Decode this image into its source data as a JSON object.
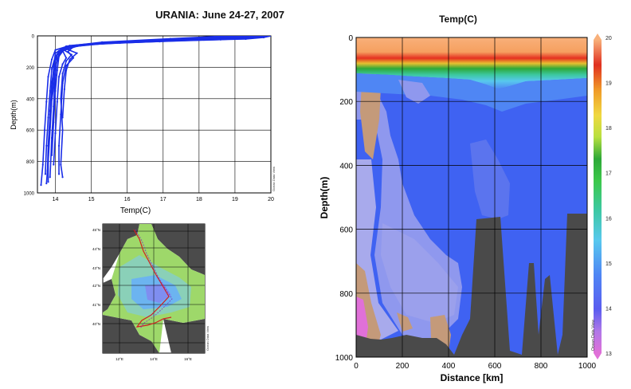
{
  "page": {
    "title": "URANIA: June 24-27, 2007"
  },
  "chart_data": [
    {
      "type": "line",
      "xlabel": "Temp(C)",
      "ylabel": "Depth(m)",
      "xlim": [
        13.5,
        20
      ],
      "ylim": [
        1000,
        0
      ],
      "xticks": [
        14,
        15,
        16,
        17,
        18,
        19,
        20
      ],
      "yticks": [
        0,
        200,
        400,
        600,
        800,
        1000
      ],
      "grid": true,
      "side_label": "Ocean Data View",
      "series": [
        {
          "points": [
            [
              20,
              0
            ],
            [
              19.8,
              10
            ],
            [
              19.3,
              20
            ],
            [
              17.5,
              30
            ],
            [
              15.8,
              45
            ],
            [
              14.6,
              60
            ],
            [
              14.2,
              80
            ],
            [
              14.0,
              110
            ],
            [
              13.95,
              200
            ],
            [
              13.9,
              400
            ],
            [
              13.85,
              600
            ],
            [
              13.8,
              800
            ],
            [
              13.75,
              940
            ]
          ]
        },
        {
          "points": [
            [
              19.9,
              0
            ],
            [
              19.5,
              12
            ],
            [
              18.6,
              24
            ],
            [
              16.9,
              36
            ],
            [
              15.2,
              50
            ],
            [
              14.4,
              70
            ],
            [
              14.1,
              100
            ],
            [
              14.0,
              150
            ],
            [
              13.9,
              300
            ],
            [
              13.85,
              500
            ],
            [
              13.8,
              700
            ],
            [
              13.78,
              860
            ]
          ]
        },
        {
          "points": [
            [
              19.7,
              0
            ],
            [
              19.2,
              10
            ],
            [
              18.2,
              22
            ],
            [
              16.3,
              38
            ],
            [
              14.9,
              55
            ],
            [
              14.3,
              75
            ],
            [
              14.05,
              120
            ],
            [
              14.0,
              250
            ],
            [
              13.95,
              450
            ],
            [
              13.9,
              650
            ],
            [
              13.85,
              900
            ]
          ]
        },
        {
          "points": [
            [
              19.6,
              0
            ],
            [
              19.0,
              14
            ],
            [
              17.6,
              28
            ],
            [
              15.7,
              44
            ],
            [
              14.7,
              60
            ],
            [
              14.25,
              85
            ],
            [
              14.1,
              130
            ],
            [
              14.05,
              220
            ],
            [
              14.0,
              350
            ],
            [
              13.95,
              550
            ],
            [
              13.9,
              760
            ]
          ]
        },
        {
          "points": [
            [
              19.5,
              0
            ],
            [
              18.8,
              12
            ],
            [
              17.0,
              30
            ],
            [
              15.4,
              48
            ],
            [
              14.6,
              66
            ],
            [
              14.2,
              95
            ],
            [
              14.3,
              140
            ],
            [
              14.2,
              180
            ],
            [
              14.1,
              260
            ],
            [
              14.05,
              420
            ],
            [
              14.0,
              620
            ],
            [
              13.95,
              820
            ]
          ]
        },
        {
          "points": [
            [
              19.4,
              0
            ],
            [
              18.5,
              14
            ],
            [
              16.7,
              32
            ],
            [
              15.0,
              52
            ],
            [
              14.5,
              70
            ],
            [
              14.35,
              100
            ],
            [
              14.5,
              140
            ],
            [
              14.3,
              190
            ],
            [
              14.2,
              300
            ],
            [
              14.15,
              500
            ],
            [
              14.1,
              700
            ],
            [
              14.1,
              880
            ]
          ]
        },
        {
          "points": [
            [
              19.3,
              0
            ],
            [
              18.2,
              16
            ],
            [
              16.2,
              34
            ],
            [
              14.8,
              56
            ],
            [
              14.3,
              80
            ],
            [
              14.1,
              120
            ],
            [
              14.0,
              200
            ],
            [
              13.95,
              330
            ],
            [
              13.85,
              480
            ]
          ]
        },
        {
          "points": [
            [
              19.2,
              0
            ],
            [
              18.0,
              18
            ],
            [
              15.9,
              36
            ],
            [
              14.6,
              60
            ],
            [
              14.2,
              85
            ],
            [
              14.45,
              120
            ],
            [
              14.3,
              160
            ],
            [
              14.2,
              240
            ],
            [
              14.15,
              400
            ],
            [
              14.2,
              600
            ],
            [
              14.15,
              820
            ],
            [
              14.2,
              900
            ]
          ]
        },
        {
          "points": [
            [
              19.0,
              0
            ],
            [
              17.6,
              16
            ],
            [
              15.6,
              38
            ],
            [
              14.4,
              62
            ],
            [
              14.0,
              90
            ],
            [
              13.9,
              150
            ],
            [
              13.8,
              260
            ],
            [
              13.75,
              420
            ],
            [
              13.7,
              600
            ],
            [
              13.65,
              820
            ],
            [
              13.6,
              950
            ]
          ]
        },
        {
          "points": [
            [
              18.8,
              0
            ],
            [
              17.2,
              18
            ],
            [
              15.3,
              40
            ],
            [
              14.3,
              66
            ],
            [
              14.1,
              95
            ],
            [
              14.0,
              140
            ],
            [
              13.95,
              240
            ],
            [
              13.9,
              380
            ],
            [
              13.85,
              580
            ],
            [
              13.8,
              760
            ],
            [
              13.8,
              930
            ]
          ]
        },
        {
          "points": [
            [
              19.8,
              0
            ],
            [
              19.0,
              8
            ],
            [
              17.8,
              20
            ],
            [
              15.9,
              40
            ],
            [
              14.7,
              58
            ],
            [
              14.25,
              78
            ],
            [
              14.6,
              110
            ],
            [
              14.4,
              150
            ],
            [
              14.3,
              220
            ],
            [
              14.25,
              340
            ],
            [
              14.2,
              520
            ]
          ]
        },
        {
          "points": [
            [
              19.9,
              0
            ],
            [
              18.9,
              15
            ],
            [
              16.5,
              35
            ],
            [
              15.0,
              50
            ],
            [
              14.5,
              68
            ],
            [
              14.15,
              90
            ],
            [
              14.0,
              130
            ],
            [
              13.9,
              210
            ],
            [
              13.85,
              350
            ],
            [
              13.8,
              520
            ],
            [
              13.75,
              700
            ],
            [
              13.72,
              880
            ]
          ]
        }
      ]
    },
    {
      "type": "map",
      "lat_labels": [
        "45°N",
        "44°N",
        "43°N",
        "42°N",
        "41°N",
        "40°N"
      ],
      "lon_labels": [
        "12°E",
        "14°E",
        "16°E"
      ],
      "side_label": "Ocean Data View"
    },
    {
      "type": "heatmap",
      "title": "Temp(C)",
      "xlabel": "Distance [km]",
      "ylabel": "Depth(m)",
      "xlim": [
        0,
        1000
      ],
      "ylim": [
        1000,
        0
      ],
      "xticks": [
        0,
        200,
        400,
        600,
        800,
        1000
      ],
      "yticks": [
        0,
        200,
        400,
        600,
        800,
        1000
      ],
      "grid": true,
      "colorbar": {
        "min": 13,
        "max": 20,
        "labels": [
          "20",
          "19",
          "18",
          "17",
          "16",
          "15",
          "14",
          "13"
        ],
        "side_label": "Ocean Data View"
      },
      "colors": {
        "warm_surface": "#f8b07a",
        "thermocline": "#e53020",
        "deep_blue": "#3f62f2",
        "mid_blue": "#5870ee",
        "light_violet": "#9ba0ec",
        "tan": "#c49a7a",
        "magenta": "#e070d8",
        "seafloor": "#4a4a4a"
      }
    }
  ]
}
